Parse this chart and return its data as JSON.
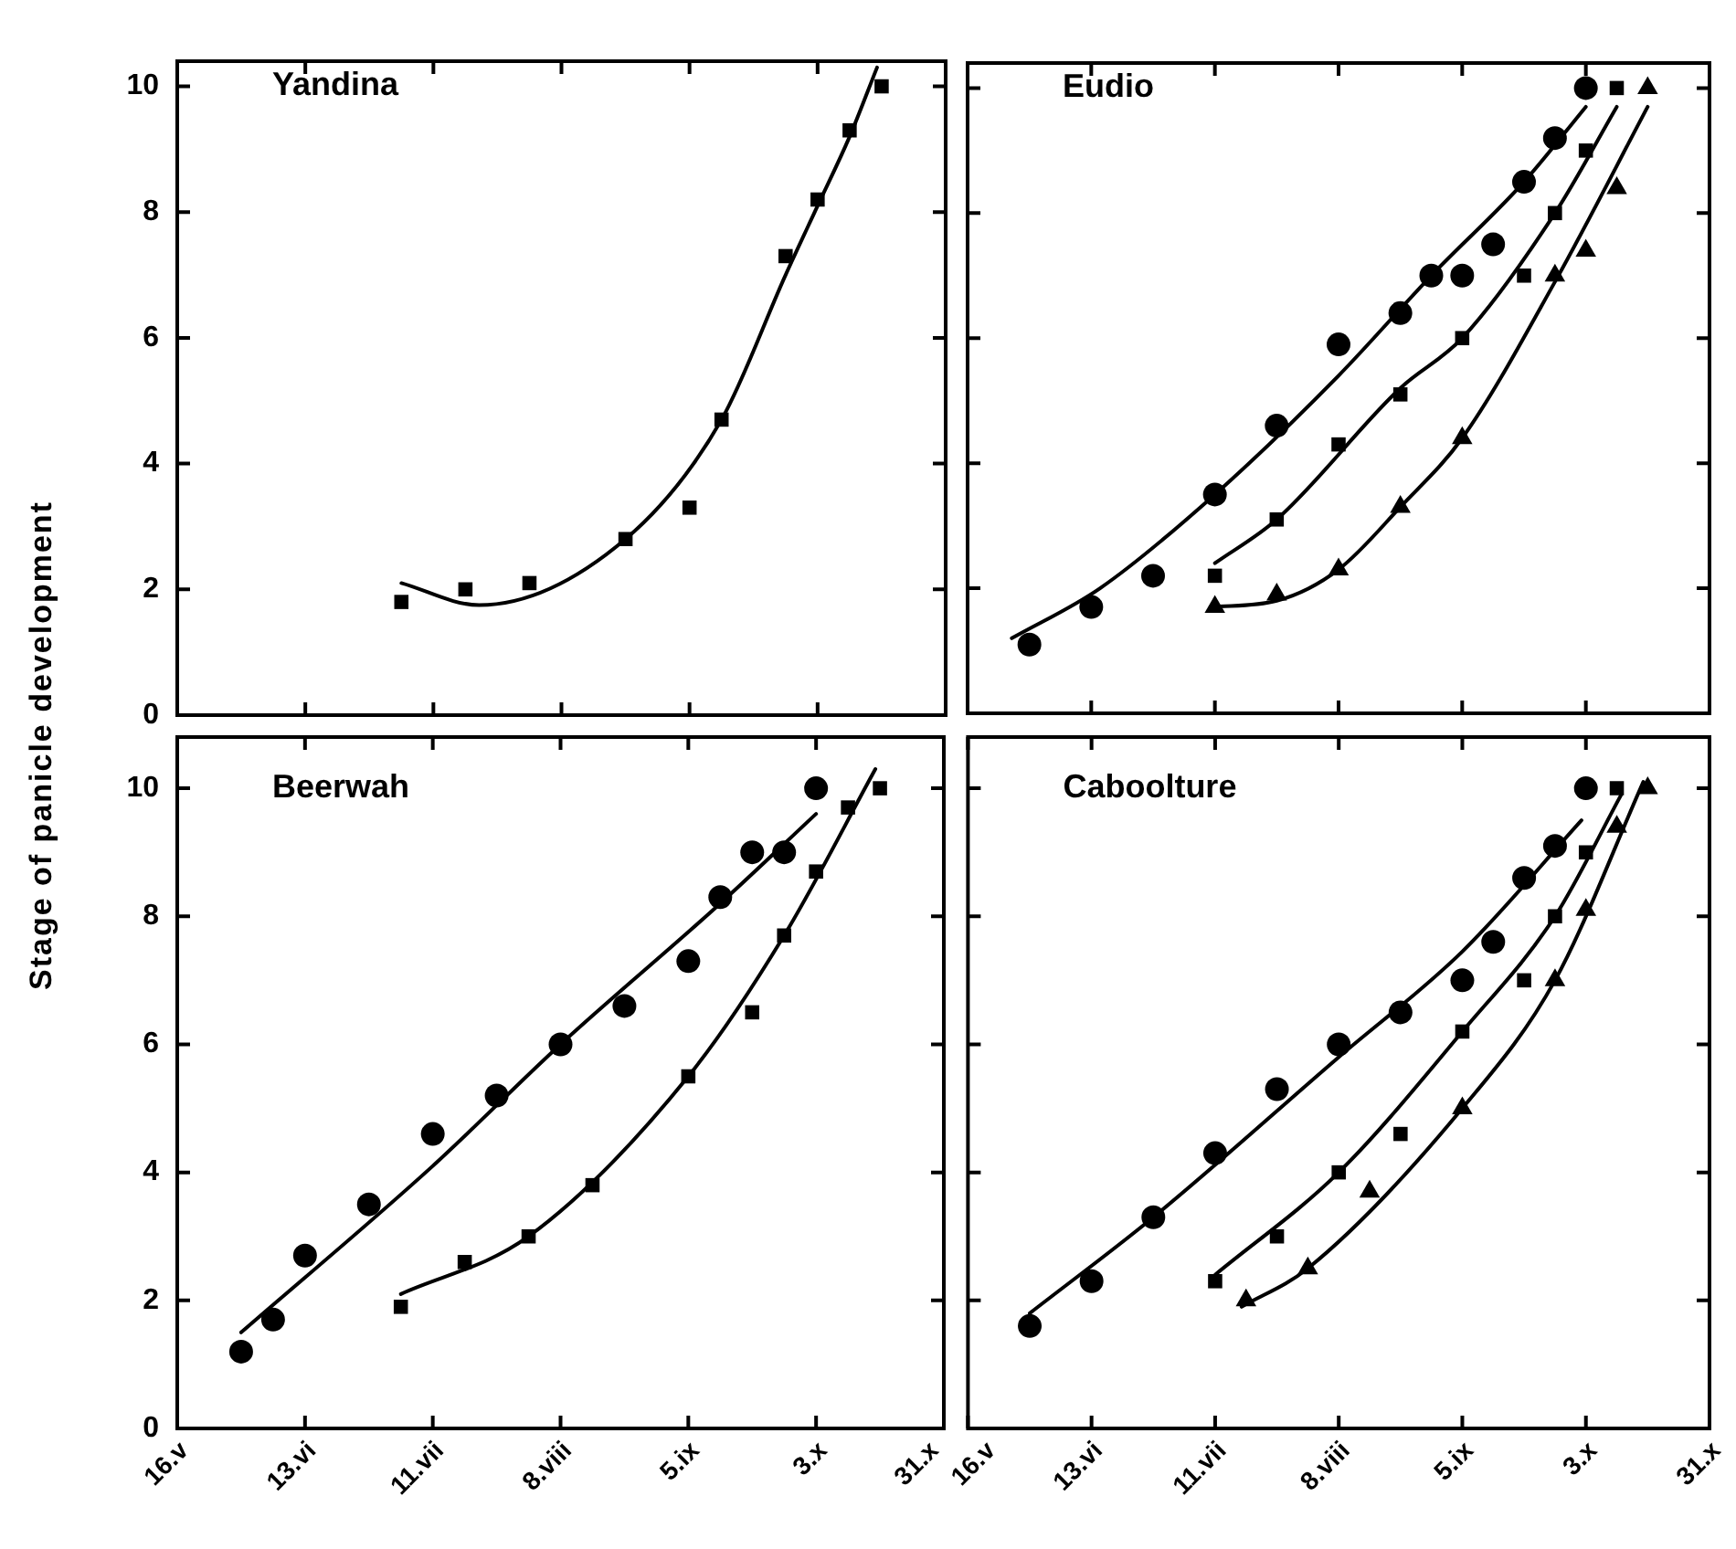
{
  "chart_data": [
    {
      "type": "scatter",
      "title": "Yandina",
      "ylabel": "Stage of panicle development",
      "tick_labels": "y",
      "xlim": [
        "--05-16",
        "--10-31"
      ],
      "ylim": [
        0,
        10.4
      ],
      "yticks": [
        0,
        2,
        4,
        6,
        8,
        10
      ],
      "xticks": [
        {
          "value": "--05-16",
          "label": null
        },
        {
          "value": "--06-13",
          "label": null
        },
        {
          "value": "--07-11",
          "label": null
        },
        {
          "value": "--08-08",
          "label": null
        },
        {
          "value": "--09-05",
          "label": null
        },
        {
          "value": "--10-03",
          "label": null
        },
        {
          "value": "--10-31",
          "label": null
        }
      ],
      "series": [
        {
          "type": "scatter",
          "marker": "square",
          "color": "#000000",
          "x": [
            "--07-04",
            "--07-18",
            "--08-01",
            "--08-22",
            "--09-05",
            "--09-12",
            "--09-26",
            "--10-03",
            "--10-10",
            "--10-17"
          ],
          "values": [
            1.8,
            2.0,
            2.1,
            2.8,
            3.3,
            4.7,
            7.3,
            8.2,
            9.3,
            10.0
          ]
        },
        {
          "type": "line",
          "marker": "none",
          "color": "#000000",
          "x": [
            "--07-04",
            "--07-21",
            "--08-22",
            "--09-12",
            "--09-26",
            "--10-03",
            "--10-10",
            "--10-16"
          ],
          "values": [
            2.1,
            1.75,
            2.8,
            4.7,
            7.0,
            8.1,
            9.2,
            10.3
          ]
        }
      ]
    },
    {
      "type": "scatter",
      "title": "Eudio",
      "tick_labels": false,
      "xlim": [
        "--05-16",
        "--10-31"
      ],
      "ylim": [
        0,
        10.4
      ],
      "yticks": [
        0,
        2,
        4,
        6,
        8,
        10
      ],
      "xticks": [
        {
          "value": "--05-16",
          "label": null
        },
        {
          "value": "--06-13",
          "label": null
        },
        {
          "value": "--07-11",
          "label": null
        },
        {
          "value": "--08-08",
          "label": null
        },
        {
          "value": "--09-05",
          "label": null
        },
        {
          "value": "--10-03",
          "label": null
        },
        {
          "value": "--10-31",
          "label": null
        }
      ],
      "series": [
        {
          "type": "scatter",
          "marker": "circle",
          "color": "#000000",
          "x": [
            "--05-30",
            "--06-13",
            "--06-27",
            "--07-11",
            "--07-25",
            "--08-08",
            "--08-22",
            "--08-29",
            "--09-05",
            "--09-12",
            "--09-19",
            "--09-26",
            "--10-03"
          ],
          "values": [
            1.1,
            1.7,
            2.2,
            3.5,
            4.6,
            5.9,
            6.4,
            7.0,
            7.0,
            7.5,
            8.5,
            9.2,
            10.0
          ]
        },
        {
          "type": "line",
          "marker": "none",
          "color": "#000000",
          "x": [
            "--05-26",
            "--06-15",
            "--07-11",
            "--08-08",
            "--08-29",
            "--09-19",
            "--10-03"
          ],
          "values": [
            1.2,
            2.0,
            3.5,
            5.4,
            7.0,
            8.5,
            9.7
          ]
        },
        {
          "type": "scatter",
          "marker": "square",
          "color": "#000000",
          "x": [
            "--07-11",
            "--07-25",
            "--08-08",
            "--08-22",
            "--09-05",
            "--09-19",
            "--09-26",
            "--10-03",
            "--10-10"
          ],
          "values": [
            2.2,
            3.1,
            4.3,
            5.1,
            6.0,
            7.0,
            8.0,
            9.0,
            10.0
          ]
        },
        {
          "type": "line",
          "marker": "none",
          "color": "#000000",
          "x": [
            "--07-11",
            "--07-25",
            "--08-22",
            "--09-05",
            "--09-26",
            "--10-10"
          ],
          "values": [
            2.4,
            3.1,
            5.2,
            6.0,
            8.0,
            9.7
          ]
        },
        {
          "type": "scatter",
          "marker": "triangle",
          "color": "#000000",
          "x": [
            "--07-11",
            "--07-25",
            "--08-08",
            "--08-22",
            "--09-05",
            "--09-26",
            "--10-03",
            "--10-10",
            "--10-17"
          ],
          "values": [
            1.7,
            1.9,
            2.3,
            3.3,
            4.4,
            7.0,
            7.4,
            8.4,
            10.0
          ]
        },
        {
          "type": "line",
          "marker": "none",
          "color": "#000000",
          "x": [
            "--07-10",
            "--07-25",
            "--08-08",
            "--08-22",
            "--09-05",
            "--09-26",
            "--10-17"
          ],
          "values": [
            1.7,
            1.8,
            2.3,
            3.3,
            4.4,
            6.9,
            9.7
          ]
        }
      ]
    },
    {
      "type": "scatter",
      "title": "Beerwah",
      "xlim": [
        "--05-16",
        "--10-31"
      ],
      "ylim": [
        0,
        10.8
      ],
      "yticks": [
        0,
        2,
        4,
        6,
        8,
        10
      ],
      "xticks": [
        {
          "value": "--05-16",
          "label": "16.v"
        },
        {
          "value": "--06-13",
          "label": "13.vi"
        },
        {
          "value": "--07-11",
          "label": "11.vii"
        },
        {
          "value": "--08-08",
          "label": "8.viii"
        },
        {
          "value": "--09-05",
          "label": "5.ix"
        },
        {
          "value": "--10-03",
          "label": "3.x"
        },
        {
          "value": "--10-31",
          "label": "31.x"
        }
      ],
      "series": [
        {
          "type": "scatter",
          "marker": "circle",
          "color": "#000000",
          "x": [
            "--05-30",
            "--06-06",
            "--06-13",
            "--06-27",
            "--07-11",
            "--07-25",
            "--08-08",
            "--08-22",
            "--09-05",
            "--09-12",
            "--09-19",
            "--09-26",
            "--10-03"
          ],
          "values": [
            1.2,
            1.7,
            2.7,
            3.5,
            4.6,
            5.2,
            6.0,
            6.6,
            7.3,
            8.3,
            9.0,
            9.0,
            10.0
          ]
        },
        {
          "type": "line",
          "marker": "none",
          "color": "#000000",
          "x": [
            "--05-30",
            "--07-11",
            "--08-08",
            "--09-12",
            "--10-03"
          ],
          "values": [
            1.5,
            4.1,
            6.0,
            8.2,
            9.6
          ]
        },
        {
          "type": "scatter",
          "marker": "square",
          "color": "#000000",
          "x": [
            "--07-04",
            "--07-18",
            "--08-01",
            "--08-15",
            "--09-05",
            "--09-19",
            "--09-26",
            "--10-03",
            "--10-10",
            "--10-17"
          ],
          "values": [
            1.9,
            2.6,
            3.0,
            3.8,
            5.5,
            6.5,
            7.7,
            8.7,
            9.7,
            10.0
          ]
        },
        {
          "type": "line",
          "marker": "none",
          "color": "#000000",
          "x": [
            "--07-04",
            "--08-01",
            "--09-05",
            "--09-26",
            "--10-16"
          ],
          "values": [
            2.1,
            3.0,
            5.5,
            7.7,
            10.3
          ]
        }
      ]
    },
    {
      "type": "scatter",
      "title": "Caboolture",
      "tick_labels": "x",
      "xlim": [
        "--05-16",
        "--10-31"
      ],
      "ylim": [
        0,
        10.8
      ],
      "yticks": [
        0,
        2,
        4,
        6,
        8,
        10
      ],
      "xticks": [
        {
          "value": "--05-16",
          "label": "16.v"
        },
        {
          "value": "--06-13",
          "label": "13.vi"
        },
        {
          "value": "--07-11",
          "label": "11.vii"
        },
        {
          "value": "--08-08",
          "label": "8.viii"
        },
        {
          "value": "--09-05",
          "label": "5.ix"
        },
        {
          "value": "--10-03",
          "label": "3.x"
        },
        {
          "value": "--10-31",
          "label": "31.x"
        }
      ],
      "series": [
        {
          "type": "scatter",
          "marker": "circle",
          "color": "#000000",
          "x": [
            "--05-30",
            "--06-13",
            "--06-27",
            "--07-11",
            "--07-25",
            "--08-08",
            "--08-22",
            "--09-05",
            "--09-12",
            "--09-19",
            "--09-26",
            "--10-03"
          ],
          "values": [
            1.6,
            2.3,
            3.3,
            4.3,
            5.3,
            6.0,
            6.5,
            7.0,
            7.6,
            8.6,
            9.1,
            10.0
          ]
        },
        {
          "type": "line",
          "marker": "none",
          "color": "#000000",
          "x": [
            "--05-30",
            "--06-27",
            "--08-08",
            "--09-05",
            "--10-02"
          ],
          "values": [
            1.8,
            3.3,
            5.8,
            7.45,
            9.5
          ]
        },
        {
          "type": "scatter",
          "marker": "square",
          "color": "#000000",
          "x": [
            "--07-11",
            "--07-25",
            "--08-08",
            "--08-22",
            "--09-05",
            "--09-19",
            "--09-26",
            "--10-03",
            "--10-10"
          ],
          "values": [
            2.3,
            3.0,
            4.0,
            4.6,
            6.2,
            7.0,
            8.0,
            9.0,
            10.0
          ]
        },
        {
          "type": "line",
          "marker": "none",
          "color": "#000000",
          "x": [
            "--07-11",
            "--08-08",
            "--09-05",
            "--09-26",
            "--10-11"
          ],
          "values": [
            2.4,
            4.0,
            6.2,
            8.0,
            9.9
          ]
        },
        {
          "type": "scatter",
          "marker": "triangle",
          "color": "#000000",
          "x": [
            "--07-18",
            "--08-01",
            "--08-15",
            "--09-05",
            "--09-26",
            "--10-03",
            "--10-10",
            "--10-17"
          ],
          "values": [
            2.0,
            2.5,
            3.7,
            5.0,
            7.0,
            8.1,
            9.4,
            10.0
          ]
        },
        {
          "type": "line",
          "marker": "none",
          "color": "#000000",
          "x": [
            "--07-17",
            "--08-01",
            "--09-05",
            "--09-26",
            "--10-16"
          ],
          "values": [
            1.9,
            2.5,
            5.0,
            7.0,
            10.1
          ]
        }
      ]
    }
  ]
}
